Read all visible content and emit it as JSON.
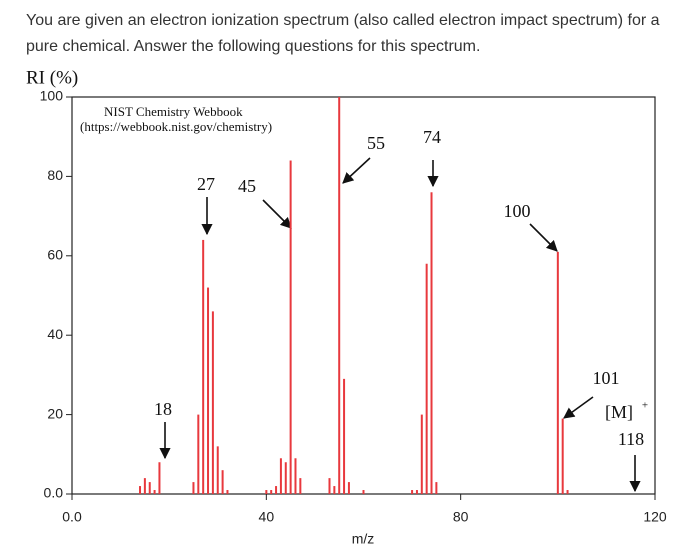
{
  "question": "You are given an electron ionization spectrum (also called electron impact spectrum) for a pure chemical.  Answer the following questions for this spectrum.",
  "chart_data": {
    "type": "bar",
    "y_label": "RI (%)",
    "x_label": "m/z",
    "watermark": [
      "NIST Chemistry Webbook",
      "(https://webbook.nist.gov/chemistry)"
    ],
    "x": [
      14,
      15,
      16,
      17,
      18,
      25,
      26,
      27,
      28,
      29,
      30,
      31,
      32,
      40,
      41,
      42,
      43,
      44,
      45,
      46,
      47,
      53,
      54,
      55,
      56,
      57,
      60,
      70,
      71,
      72,
      73,
      74,
      75,
      100,
      101,
      102
    ],
    "values": [
      2,
      4,
      3,
      1,
      8,
      3,
      20,
      64,
      52,
      46,
      12,
      6,
      1,
      1,
      1,
      2,
      9,
      8,
      84,
      9,
      4,
      4,
      2,
      100,
      29,
      3,
      1,
      1,
      1,
      20,
      58,
      76,
      3,
      61,
      19,
      1
    ],
    "color": "#e8383d",
    "xlim": [
      0,
      120
    ],
    "xticks": [
      {
        "value": 0,
        "label": "0.0"
      },
      40,
      80,
      120
    ],
    "ylim": [
      0,
      100
    ],
    "yticks": [
      {
        "value": 0,
        "label": "0.0"
      },
      20,
      40,
      60,
      80,
      100
    ],
    "annotations": [
      "18",
      "27",
      "45",
      "55",
      "74",
      "100",
      "101",
      "[M]",
      "+",
      "118"
    ]
  }
}
